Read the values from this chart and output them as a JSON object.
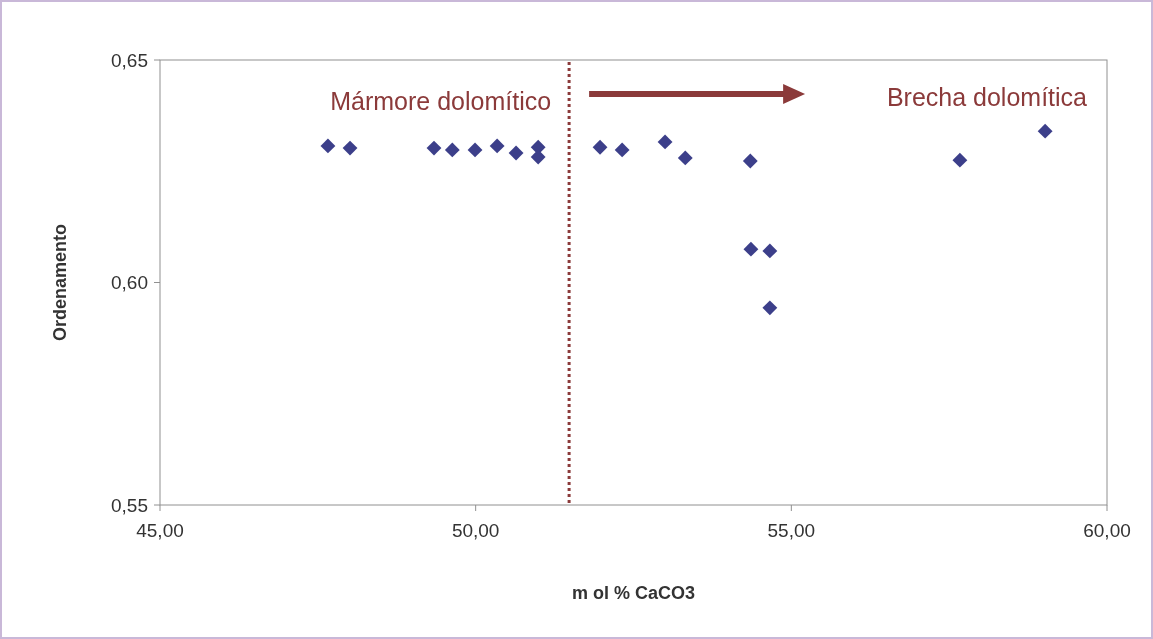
{
  "chart_data": {
    "type": "scatter",
    "xlabel": "m ol % CaCO3",
    "ylabel": "Ordenamento",
    "x": [
      47.66,
      48.01,
      49.34,
      49.63,
      49.99,
      50.34,
      50.64,
      50.99,
      50.99,
      51.97,
      52.32,
      53.0,
      53.32,
      54.35,
      54.36,
      54.66,
      54.66,
      57.67,
      59.02
    ],
    "series": [
      {
        "color": "#3c3f8a",
        "values": [
          0.6307,
          0.6302,
          0.6302,
          0.6298,
          0.6298,
          0.6307,
          0.6291,
          0.6304,
          0.6282,
          0.6304,
          0.6298,
          0.6316,
          0.628,
          0.6273,
          0.6075,
          0.6071,
          0.5943,
          0.6275,
          0.634
        ]
      }
    ],
    "xlim": [
      45,
      60
    ],
    "xticks": [
      {
        "value": 45,
        "label": "45,00"
      },
      {
        "value": 50,
        "label": "50,00"
      },
      {
        "value": 55,
        "label": "55,00"
      },
      {
        "value": 60,
        "label": "60,00"
      }
    ],
    "ylim": [
      0.55,
      0.65
    ],
    "yticks": [
      {
        "value": 0.55,
        "label": "0,55"
      },
      {
        "value": 0.6,
        "label": "0,60"
      },
      {
        "value": 0.65,
        "label": "0,65"
      }
    ],
    "marker": "diamond",
    "grid": false,
    "ref_lines": [
      {
        "axis": "x",
        "value": 51.48,
        "color": "#8b3a3a",
        "line_style": "dotted"
      }
    ],
    "annotations": [
      "Mármore dolomítico",
      "Brecha dolomítica"
    ]
  }
}
